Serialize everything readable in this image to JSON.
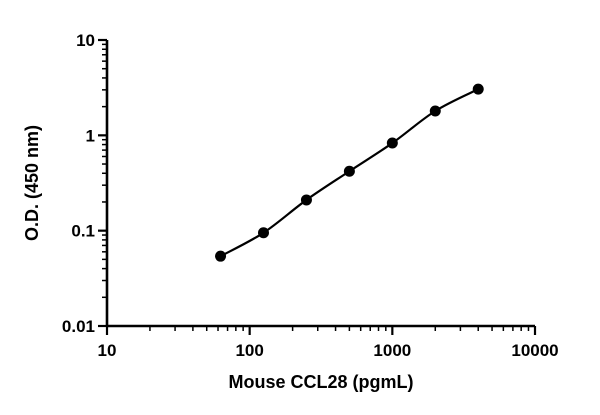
{
  "chart_data": {
    "type": "scatter",
    "title": "",
    "xlabel": "Mouse CCL28 (pgmL)",
    "ylabel": "O.D. (450 nm)",
    "xscale": "log",
    "yscale": "log",
    "xlim": [
      10,
      10000
    ],
    "ylim": [
      0.01,
      10
    ],
    "x_ticks": [
      "10",
      "100",
      "1000",
      "10000"
    ],
    "y_ticks": [
      "0.01",
      "0.1",
      "1",
      "10"
    ],
    "grid": false,
    "fit_curve": true,
    "series": [
      {
        "x": [
          62.5,
          125,
          250,
          500,
          1000,
          2000,
          4000
        ],
        "y": [
          0.054,
          0.095,
          0.21,
          0.42,
          0.83,
          1.8,
          3.05
        ]
      }
    ]
  }
}
